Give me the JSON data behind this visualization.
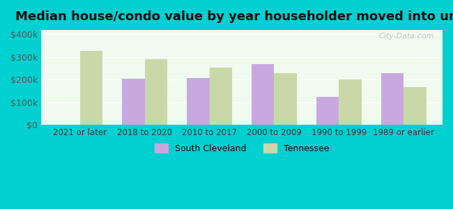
{
  "title": "Median house/condo value by year householder moved into unit",
  "categories": [
    "2021 or later",
    "2018 to 2020",
    "2010 to 2017",
    "2000 to 2009",
    "1990 to 1999",
    "1989 or earlier"
  ],
  "south_cleveland": [
    null,
    205000,
    207000,
    268000,
    125000,
    230000
  ],
  "tennessee": [
    328000,
    290000,
    255000,
    228000,
    202000,
    168000
  ],
  "sc_color": "#c9a8e0",
  "tn_color": "#c8d8a8",
  "bg_outer": "#00d0d0",
  "bg_inner": "#f0faee",
  "ylabel_color": "#555555",
  "yticks": [
    0,
    100000,
    200000,
    300000,
    400000
  ],
  "ytick_labels": [
    "$0",
    "$100k",
    "$200k",
    "$300k",
    "$400k"
  ],
  "ylim": [
    0,
    420000
  ],
  "bar_width": 0.35,
  "legend_sc_label": "South Cleveland",
  "legend_tn_label": "Tennessee",
  "watermark": "City-Data.com"
}
